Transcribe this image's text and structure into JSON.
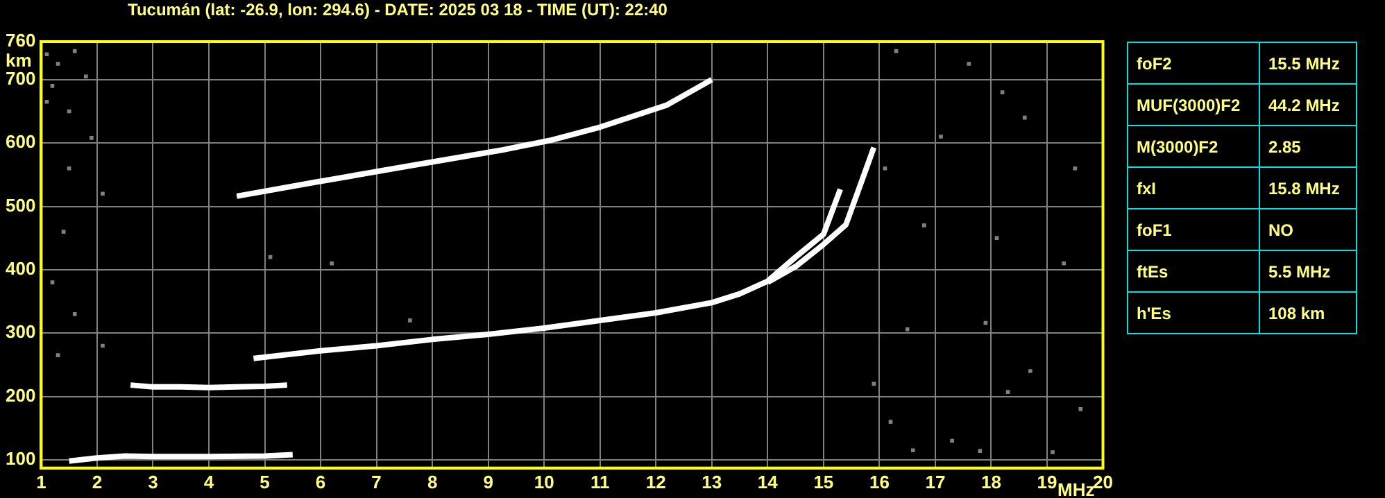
{
  "chart_data": {
    "type": "line",
    "title": "Tucumán (lat: -26.9, lon: 294.6) - DATE: 2025 03 18 - TIME (UT): 22:40",
    "xlabel": "MHz",
    "ylabel": "km",
    "xlim": [
      1,
      20
    ],
    "xticks": [
      1,
      2,
      3,
      4,
      5,
      6,
      7,
      8,
      9,
      10,
      11,
      12,
      13,
      14,
      15,
      16,
      17,
      18,
      19,
      20
    ],
    "ylim": [
      87,
      760
    ],
    "yticks": [
      100,
      200,
      300,
      400,
      500,
      600,
      700,
      760
    ],
    "grid": true,
    "legend": false,
    "line_style": "solid",
    "marker": "none",
    "series": [
      {
        "color": "#ffffff",
        "x": [
          1.5,
          2,
          2.5,
          3,
          4,
          5,
          5.5
        ],
        "values": [
          98,
          103,
          106,
          105,
          105,
          106,
          108
        ]
      },
      {
        "color": "#ffffff",
        "x": [
          2.6,
          3,
          3.5,
          4,
          4.5,
          5,
          5.4
        ],
        "values": [
          218,
          215,
          215,
          214,
          215,
          216,
          218
        ]
      },
      {
        "color": "#ffffff",
        "x": [
          4.8,
          6,
          7,
          8,
          9,
          10,
          11,
          12,
          13,
          13.5,
          14,
          14.5,
          15,
          15.3
        ],
        "values": [
          260,
          272,
          280,
          290,
          298,
          308,
          320,
          332,
          348,
          362,
          382,
          420,
          456,
          527
        ]
      },
      {
        "color": "#ffffff",
        "x": [
          14,
          14.5,
          15,
          15.4,
          15.7,
          15.9
        ],
        "values": [
          380,
          405,
          440,
          471,
          544,
          593
        ]
      },
      {
        "color": "#ffffff",
        "x": [
          4.5,
          5.9,
          7.6,
          9.25,
          10.1,
          11,
          12.2,
          13
        ],
        "values": [
          516,
          538,
          564,
          589,
          604,
          625,
          660,
          700
        ]
      },
      {
        "type": "scatter",
        "marker": "square",
        "color": "#808080",
        "x": [
          1.1,
          1.3,
          1.6,
          1.8,
          1.2,
          1.1,
          1.5,
          1.9,
          1.5,
          2.1,
          1.4,
          1.2,
          1.6,
          2.1,
          1.3,
          16.3,
          17.6,
          18.2,
          16.1,
          17.1,
          18.6,
          19.5,
          16.8,
          18.1,
          19.3,
          16.5,
          17.9,
          18.7,
          19.6,
          16.2,
          17.3,
          18.3,
          15.9,
          19.1,
          17.8,
          16.6,
          7.6,
          5.1,
          6.2
        ],
        "values": [
          740,
          725,
          745,
          705,
          690,
          665,
          650,
          608,
          560,
          520,
          460,
          380,
          330,
          280,
          265,
          745,
          725,
          680,
          560,
          610,
          640,
          560,
          470,
          450,
          410,
          306,
          316,
          240,
          180,
          160,
          130,
          207,
          220,
          112,
          114,
          115,
          320,
          420,
          410
        ]
      }
    ],
    "annotations": [
      "foF2",
      "15.5 MHz",
      "MUF(3000)F2",
      "44.2 MHz",
      "M(3000)F2",
      "2.85",
      "fxI",
      "15.8 MHz",
      "foF1",
      "NO",
      "ftEs",
      "5.5 MHz",
      "h'Es",
      "108 km"
    ]
  }
}
